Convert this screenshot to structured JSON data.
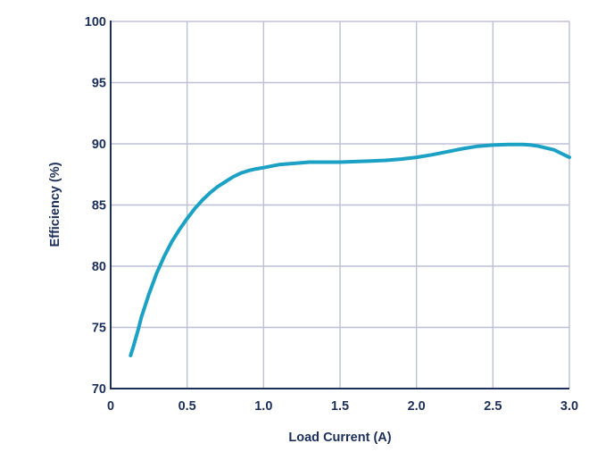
{
  "chart_data": {
    "type": "line",
    "title": "",
    "xlabel": "Load Current (A)",
    "ylabel": "Efficiency (%)",
    "xlim": [
      0,
      3.0
    ],
    "ylim": [
      70,
      100
    ],
    "x_ticks": [
      0,
      0.5,
      1.0,
      1.5,
      2.0,
      2.5,
      3.0
    ],
    "x_tick_labels": [
      "0",
      "0.5",
      "1.0",
      "1.5",
      "2.0",
      "2.5",
      "3.0"
    ],
    "y_ticks": [
      70,
      75,
      80,
      85,
      90,
      95,
      100
    ],
    "y_tick_labels": [
      "70",
      "75",
      "80",
      "85",
      "90",
      "95",
      "100"
    ],
    "grid": true,
    "legend": "none",
    "colors": {
      "series": "#1ba1c4",
      "grid": "#bdbfd6",
      "axis": "#1c2f5a",
      "text": "#1c2f5a"
    },
    "series": [
      {
        "x": [
          0.13,
          0.15,
          0.18,
          0.2,
          0.25,
          0.3,
          0.35,
          0.4,
          0.45,
          0.5,
          0.55,
          0.6,
          0.65,
          0.7,
          0.75,
          0.8,
          0.85,
          0.9,
          0.95,
          1.0,
          1.1,
          1.2,
          1.3,
          1.4,
          1.5,
          1.6,
          1.7,
          1.8,
          1.9,
          2.0,
          2.1,
          2.2,
          2.3,
          2.4,
          2.5,
          2.6,
          2.7,
          2.75,
          2.8,
          2.9,
          2.95,
          3.0
        ],
        "values": [
          72.7,
          73.5,
          74.8,
          75.8,
          77.7,
          79.4,
          80.8,
          82.0,
          83.0,
          83.9,
          84.7,
          85.4,
          86.0,
          86.5,
          86.9,
          87.3,
          87.6,
          87.8,
          87.95,
          88.05,
          88.3,
          88.4,
          88.5,
          88.5,
          88.5,
          88.55,
          88.6,
          88.65,
          88.75,
          88.9,
          89.1,
          89.35,
          89.6,
          89.8,
          89.9,
          89.95,
          89.95,
          89.9,
          89.8,
          89.5,
          89.2,
          88.9
        ]
      }
    ]
  }
}
